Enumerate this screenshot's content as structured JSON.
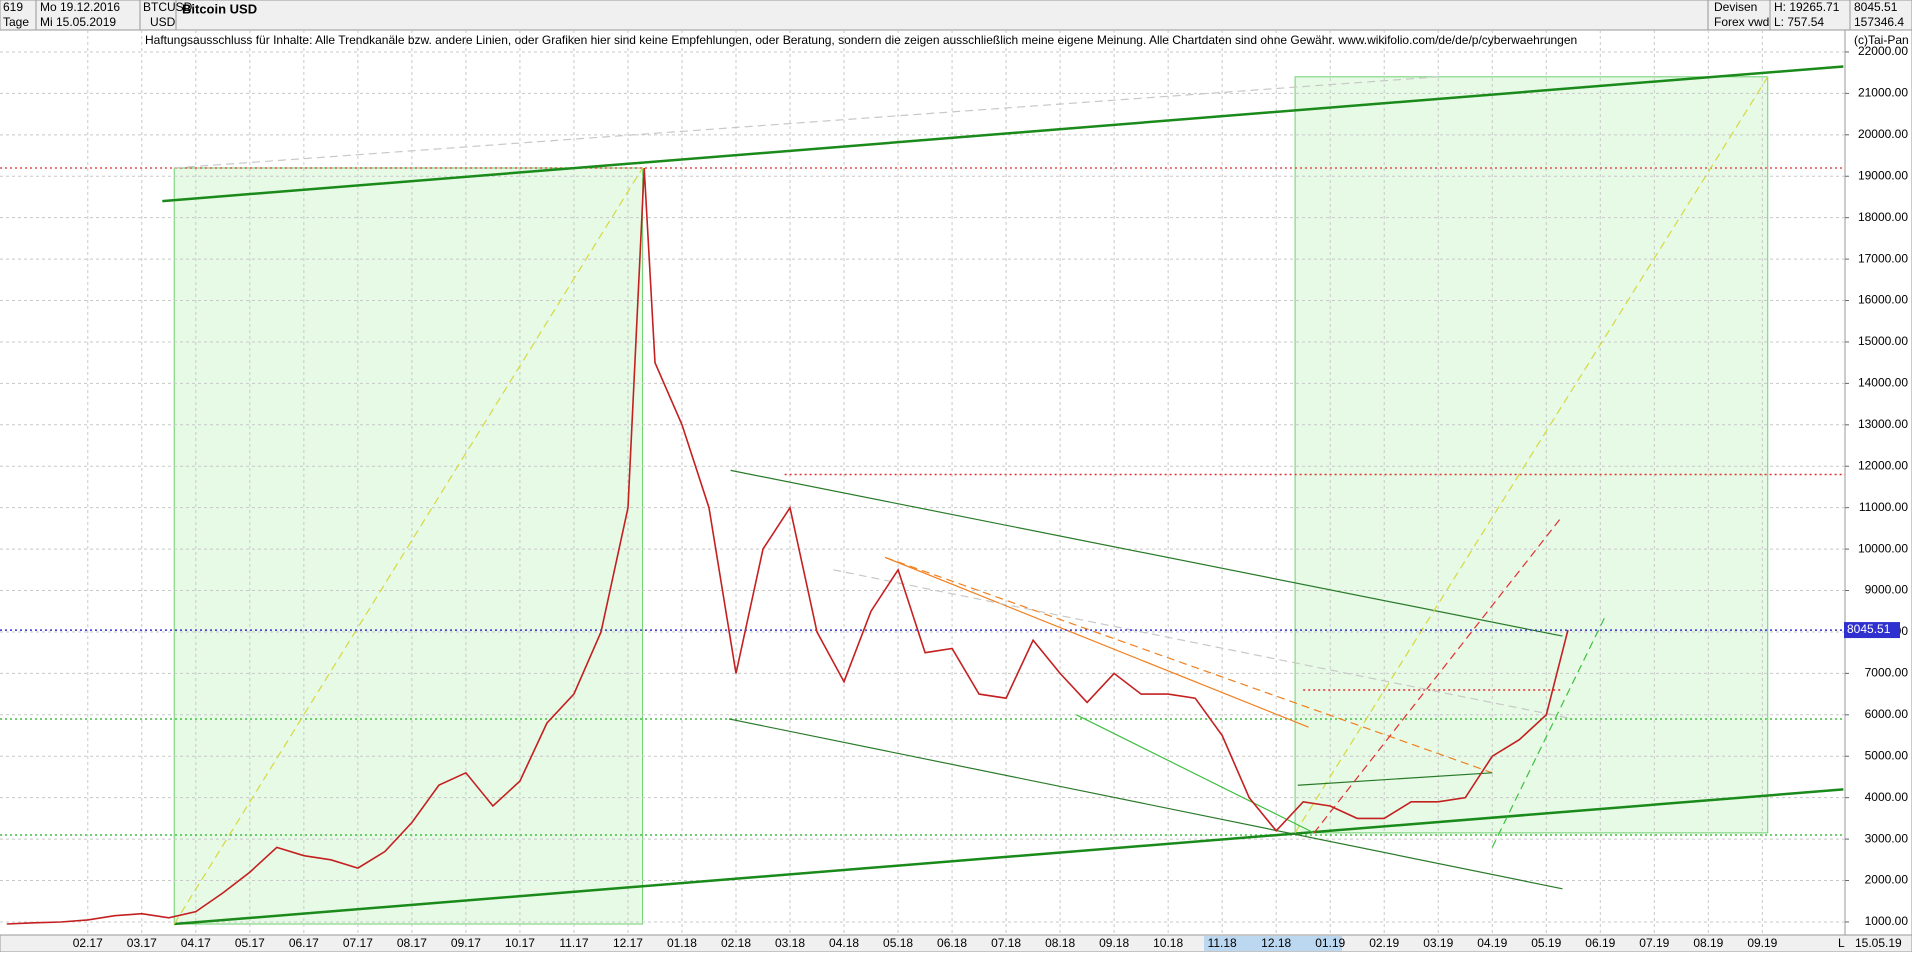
{
  "header": {
    "count": "619",
    "start_date": "Mo 19.12.2016",
    "period": "Tage",
    "end_date": "Mi 15.05.2019",
    "symbol": "BTCUSD",
    "currency": "USD",
    "market": "Devisen",
    "source": "Forex vwd",
    "high": "H: 19265.71",
    "low": "L: 757.54",
    "volume": "157346.4",
    "disclaimer": "Haftungsausschluss für Inhalte: Alle Trendkanäle bzw. andere Linien, oder Grafiken hier sind keine Empfehlungen, oder Beratung, sondern die zeigen ausschließlich meine eigene Meinung. Alle Chartdaten sind ohne Gewähr.  www.wikifolio.com/de/de/p/cyberwaehrungen",
    "copyright": "(c)Tai-Pan",
    "footer_date": "15.05.19",
    "footer_mark": "L"
  },
  "chart_data": {
    "type": "line",
    "title": "Bitcoin USD",
    "grid": true,
    "xlim": [
      -1.625,
      32.53
    ],
    "ylim": [
      685,
      22530
    ],
    "xticks": [
      {
        "value": 0,
        "label": "02.17"
      },
      {
        "value": 1,
        "label": "03.17"
      },
      {
        "value": 2,
        "label": "04.17"
      },
      {
        "value": 3,
        "label": "05.17"
      },
      {
        "value": 4,
        "label": "06.17"
      },
      {
        "value": 5,
        "label": "07.17"
      },
      {
        "value": 6,
        "label": "08.17"
      },
      {
        "value": 7,
        "label": "09.17"
      },
      {
        "value": 8,
        "label": "10.17"
      },
      {
        "value": 9,
        "label": "11.17"
      },
      {
        "value": 10,
        "label": "12.17"
      },
      {
        "value": 11,
        "label": "01.18"
      },
      {
        "value": 12,
        "label": "02.18"
      },
      {
        "value": 13,
        "label": "03.18"
      },
      {
        "value": 14,
        "label": "04.18"
      },
      {
        "value": 15,
        "label": "05.18"
      },
      {
        "value": 16,
        "label": "06.18"
      },
      {
        "value": 17,
        "label": "07.18"
      },
      {
        "value": 18,
        "label": "08.18"
      },
      {
        "value": 19,
        "label": "09.18"
      },
      {
        "value": 20,
        "label": "10.18"
      },
      {
        "value": 21,
        "label": "11.18"
      },
      {
        "value": 22,
        "label": "12.18"
      },
      {
        "value": 23,
        "label": "01.19"
      },
      {
        "value": 24,
        "label": "02.19"
      },
      {
        "value": 25,
        "label": "03.19"
      },
      {
        "value": 26,
        "label": "04.19"
      },
      {
        "value": 27,
        "label": "05.19"
      },
      {
        "value": 28,
        "label": "06.19"
      },
      {
        "value": 29,
        "label": "07.19"
      },
      {
        "value": 30,
        "label": "08.19"
      },
      {
        "value": 31,
        "label": "09.19"
      }
    ],
    "yticks": [
      {
        "value": 1000,
        "label": "1000.00"
      },
      {
        "value": 2000,
        "label": "2000.00"
      },
      {
        "value": 3000,
        "label": "3000.00"
      },
      {
        "value": 4000,
        "label": "4000.00"
      },
      {
        "value": 5000,
        "label": "5000.00"
      },
      {
        "value": 6000,
        "label": "6000.00"
      },
      {
        "value": 7000,
        "label": "7000.00"
      },
      {
        "value": 8000,
        "label": "8000.00"
      },
      {
        "value": 9000,
        "label": "9000.00"
      },
      {
        "value": 10000,
        "label": "10000.00"
      },
      {
        "value": 11000,
        "label": "11000.00"
      },
      {
        "value": 12000,
        "label": "12000.00"
      },
      {
        "value": 13000,
        "label": "13000.00"
      },
      {
        "value": 14000,
        "label": "14000.00"
      },
      {
        "value": 15000,
        "label": "15000.00"
      },
      {
        "value": 16000,
        "label": "16000.00"
      },
      {
        "value": 17000,
        "label": "17000.00"
      },
      {
        "value": 18000,
        "label": "18000.00"
      },
      {
        "value": 19000,
        "label": "19000.00"
      },
      {
        "value": 20000,
        "label": "20000.00"
      },
      {
        "value": 21000,
        "label": "21000.00"
      },
      {
        "value": 22000,
        "label": "22000.00"
      }
    ],
    "series": [
      {
        "name": "BTCUSD",
        "color": "#c42020",
        "x": [
          -1.5,
          -1,
          -0.5,
          0,
          0.5,
          1,
          1.5,
          2,
          2.5,
          3,
          3.5,
          4,
          4.5,
          5,
          5.5,
          6,
          6.5,
          7,
          7.5,
          8,
          8.5,
          9,
          9.5,
          10,
          10.3,
          10.5,
          11,
          11.5,
          12,
          12.5,
          13,
          13.5,
          14,
          14.5,
          15,
          15.5,
          16,
          16.5,
          17,
          17.5,
          18,
          18.5,
          19,
          19.5,
          20,
          20.5,
          21,
          21.5,
          22,
          22.5,
          23,
          23.5,
          24,
          24.5,
          25,
          25.5,
          26,
          26.5,
          27,
          27.4
        ],
        "values": [
          950,
          980,
          1000,
          1050,
          1150,
          1200,
          1100,
          1250,
          1700,
          2200,
          2800,
          2600,
          2500,
          2300,
          2700,
          3400,
          4300,
          4600,
          3800,
          4400,
          5800,
          6500,
          8000,
          11000,
          19200,
          14500,
          13000,
          11000,
          7000,
          10000,
          11000,
          8000,
          6800,
          8500,
          9500,
          7500,
          7600,
          6500,
          6400,
          7800,
          7000,
          6300,
          7000,
          6500,
          6500,
          6400,
          5500,
          4000,
          3200,
          3900,
          3800,
          3500,
          3500,
          3900,
          3900,
          4000,
          5000,
          5400,
          6000,
          8045.51
        ]
      }
    ],
    "last_price": 8045.51,
    "last_price_color": "#3030d0",
    "zones": [
      {
        "x": [
          1.6,
          10.27
        ],
        "y": [
          950,
          19200
        ],
        "color": "#e6fae6"
      },
      {
        "x": [
          22.35,
          31.1
        ],
        "y": [
          3150,
          21400
        ],
        "color": "#e6fae6"
      }
    ],
    "hlines": [
      {
        "value": 19200,
        "x": [
          -1.625,
          32.53
        ],
        "color": "#e05050"
      },
      {
        "value": 11800,
        "x": [
          12.9,
          32.53
        ],
        "color": "#e03030"
      },
      {
        "value": 5900,
        "x": [
          -1.625,
          32.53
        ],
        "color": "#40c040"
      },
      {
        "value": 3100,
        "x": [
          -1.625,
          32.53
        ],
        "color": "#40c040"
      },
      {
        "value": 6600,
        "x": [
          22.5,
          27.3
        ],
        "color": "#e03030"
      }
    ],
    "trend_lines": [
      {
        "x": [
          1.38,
          32.5
        ],
        "y": [
          18400,
          21650
        ],
        "color": "#1a8a1a",
        "style": "bold"
      },
      {
        "x": [
          1.6,
          32.5
        ],
        "y": [
          950,
          4200
        ],
        "color": "#1a8a1a",
        "style": "bold"
      },
      {
        "x": [
          11.9,
          27.3
        ],
        "y": [
          11900,
          7900
        ],
        "color": "#2a7a2a",
        "style": "solid"
      },
      {
        "x": [
          11.87,
          27.3
        ],
        "y": [
          5900,
          1800
        ],
        "color": "#2a7a2a",
        "style": "solid"
      },
      {
        "x": [
          1.6,
          10.27
        ],
        "y": [
          950,
          19200
        ],
        "color": "#d8d840",
        "style": "dashed"
      },
      {
        "x": [
          22.35,
          31.1
        ],
        "y": [
          3150,
          21400
        ],
        "color": "#d8d840",
        "style": "dashed"
      },
      {
        "x": [
          14.76,
          22.6
        ],
        "y": [
          9800,
          5700
        ],
        "color": "#f08020",
        "style": "solid"
      },
      {
        "x": [
          14.76,
          26
        ],
        "y": [
          9800,
          4600
        ],
        "color": "#f08020",
        "style": "dashed"
      },
      {
        "x": [
          18.3,
          22.7
        ],
        "y": [
          6000,
          3150
        ],
        "color": "#40c040",
        "style": "solid"
      },
      {
        "x": [
          22.4,
          26
        ],
        "y": [
          4300,
          4600
        ],
        "color": "#2a7a2a",
        "style": "solid"
      },
      {
        "x": [
          22.7,
          27.3
        ],
        "y": [
          3150,
          10800
        ],
        "color": "#e03030",
        "style": "dashed"
      },
      {
        "x": [
          26,
          28.1
        ],
        "y": [
          2800,
          8400
        ],
        "color": "#40c040",
        "style": "dashed"
      },
      {
        "x": [
          1.6,
          25
        ],
        "y": [
          19200,
          21400
        ],
        "color": "#c8c8c8",
        "style": "dashed"
      },
      {
        "x": [
          13.8,
          27.5
        ],
        "y": [
          9500,
          5900
        ],
        "color": "#c8c8c8",
        "style": "dashed"
      }
    ]
  }
}
